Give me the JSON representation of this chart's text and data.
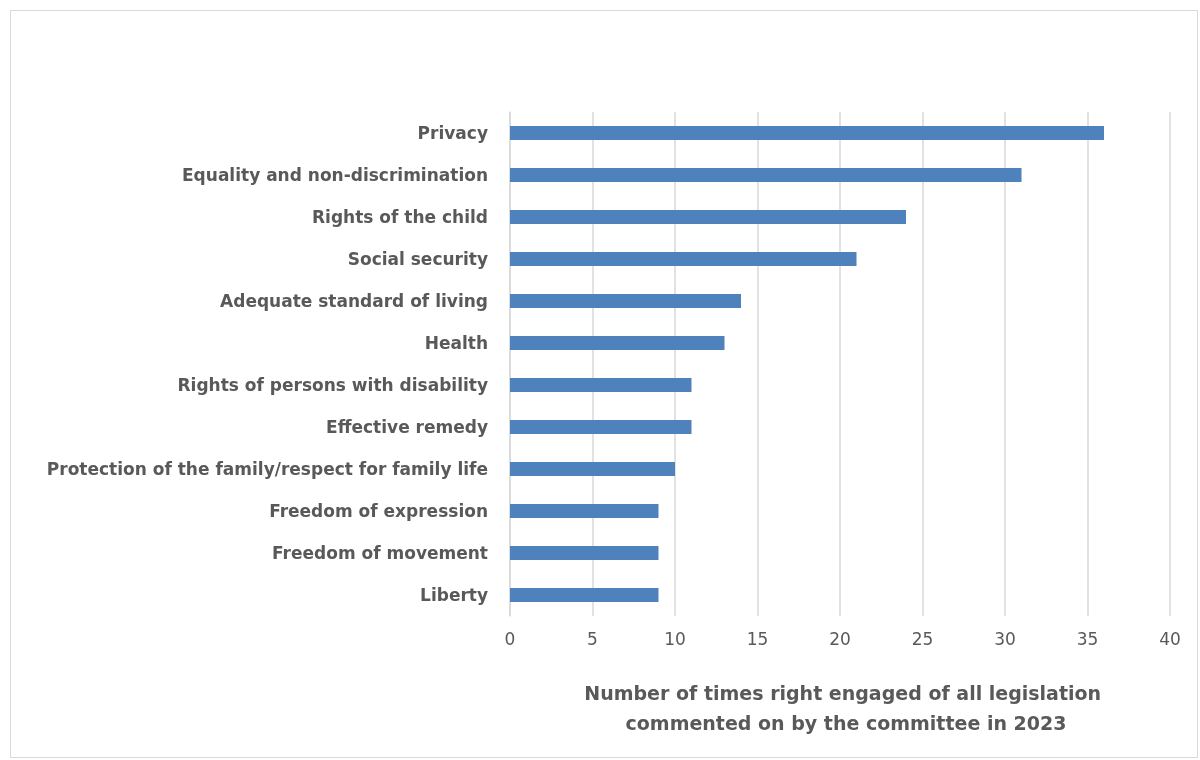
{
  "chart_data": {
    "type": "bar",
    "orientation": "horizontal",
    "xlabel": "Number of times right engaged of all legislation commented on by the committee in 2023",
    "categories": [
      "Privacy",
      "Equality and non-discrimination",
      "Rights of the child",
      "Social security",
      "Adequate standard of living",
      "Health",
      "Rights of persons with disability",
      "Effective remedy",
      "Protection of the family/respect for family life",
      "Freedom of expression",
      "Freedom of movement",
      "Liberty"
    ],
    "values": [
      36,
      31,
      24,
      21,
      14,
      13,
      11,
      11,
      10,
      9,
      9,
      9
    ],
    "color": "#4f81bd",
    "xlim": [
      0,
      40
    ],
    "xticks": [
      0,
      5,
      10,
      15,
      20,
      25,
      30,
      35,
      40
    ],
    "grid": "x"
  }
}
